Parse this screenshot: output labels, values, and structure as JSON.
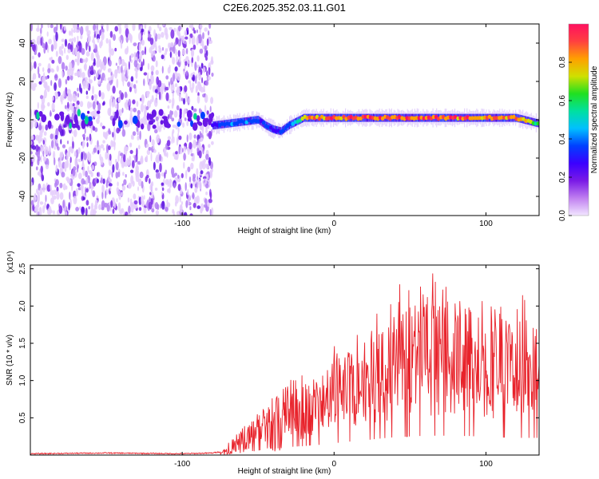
{
  "title": "C2E6.2025.352.03.11.G01",
  "chart_data": [
    {
      "type": "heatmap",
      "xlabel": "Height of straight line (km)",
      "ylabel": "Frequency (Hz)",
      "xlim": [
        -200,
        135
      ],
      "ylim": [
        -50,
        50
      ],
      "xticks": [
        -100,
        0,
        100
      ],
      "yticks": [
        -40,
        -20,
        0,
        20,
        40
      ],
      "noise_region_x": [
        -200,
        -80
      ],
      "signal_trace": {
        "x": [
          -80,
          -70,
          -60,
          -50,
          -45,
          -40,
          -35,
          -30,
          -25,
          -20,
          -15,
          -10,
          0,
          20,
          40,
          60,
          80,
          100,
          120,
          135
        ],
        "freq": [
          -3,
          -2,
          -1,
          0,
          -3,
          -5,
          -6,
          -3,
          -1,
          1,
          1,
          1,
          1,
          1,
          1,
          1,
          1,
          1,
          1,
          -2
        ],
        "amplitude": [
          0.3,
          0.38,
          0.45,
          0.4,
          0.35,
          0.3,
          0.35,
          0.45,
          0.55,
          0.75,
          0.88,
          0.92,
          0.95,
          0.97,
          0.96,
          0.98,
          0.96,
          0.95,
          0.9,
          0.6
        ]
      },
      "colorbar": {
        "label": "Normalized spectral amplitude",
        "range": [
          0,
          1
        ],
        "ticks": [
          "0.0",
          "0.2",
          "0.4",
          "0.6",
          "0.8"
        ],
        "colors": [
          "#f2e6ff",
          "#c07ff0",
          "#7a1ae6",
          "#3b00ff",
          "#0040ff",
          "#00c0ff",
          "#00e0a0",
          "#20e020",
          "#d0e000",
          "#ffa000",
          "#ff4040",
          "#ff1060"
        ]
      }
    },
    {
      "type": "line",
      "xlabel": "Height of straight line (km)",
      "ylabel": "SNR (10 * v/v)",
      "y_multiplier": "(x10⁴)",
      "xlim": [
        -200,
        135
      ],
      "ylim": [
        0,
        2.55
      ],
      "xticks": [
        -100,
        0,
        100
      ],
      "yticks": [
        "0.5",
        "1.0",
        "1.5",
        "2.0",
        "2.5"
      ],
      "series": [
        {
          "name": "SNR",
          "color": "#e8222a",
          "x": [
            -200,
            -150,
            -100,
            -80,
            -72,
            -65,
            -55,
            -45,
            -40,
            -35,
            -28,
            -20,
            -12,
            -5,
            0,
            10,
            20,
            30,
            40,
            50,
            60,
            70,
            80,
            90,
            95,
            100,
            110,
            120,
            135
          ],
          "y": [
            0.01,
            0.02,
            0.01,
            0.02,
            0.05,
            0.15,
            0.25,
            0.35,
            0.45,
            0.45,
            0.55,
            0.6,
            0.68,
            0.7,
            0.8,
            0.9,
            1.0,
            1.1,
            1.2,
            1.25,
            1.3,
            1.3,
            1.28,
            1.28,
            1.22,
            1.2,
            1.18,
            1.15,
            1.15
          ]
        }
      ]
    }
  ]
}
